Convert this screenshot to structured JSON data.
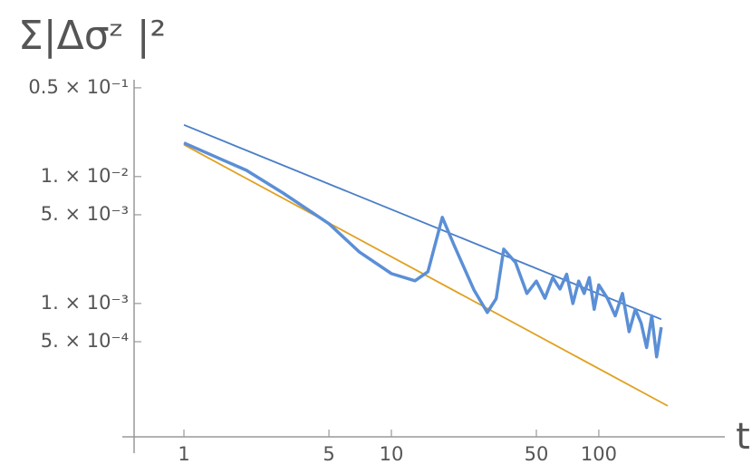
{
  "chart_data": {
    "type": "line",
    "title": "Σ|Δσᶻ |²",
    "x_label": "t",
    "log_x": true,
    "log_y": true,
    "xlim": [
      0.575,
      405
    ],
    "ylim": [
      8.9e-05,
      0.056
    ],
    "xticks": [
      1,
      5,
      10,
      50,
      100
    ],
    "yticks": [
      {
        "value": 0.05,
        "label": "0.5 × 10⁻¹"
      },
      {
        "value": 0.01,
        "label": "1. × 10⁻²"
      },
      {
        "value": 0.005,
        "label": "5. × 10⁻³"
      },
      {
        "value": 0.001,
        "label": "1. × 10⁻³"
      },
      {
        "value": 0.0005,
        "label": "5. × 10⁻⁴"
      }
    ],
    "series": [
      {
        "color": "#5b8fd6",
        "x": [
          1,
          2,
          3,
          5,
          7,
          10,
          13,
          15,
          17.6,
          20,
          25,
          29,
          32,
          34.8,
          39.7,
          45,
          50,
          55,
          60,
          65,
          70,
          75,
          80,
          85,
          90,
          95,
          100,
          110,
          120,
          130,
          140,
          150,
          160,
          170,
          180,
          190,
          200
        ],
        "values": [
          0.0184,
          0.0112,
          0.00743,
          0.00425,
          0.00255,
          0.00172,
          0.00151,
          0.00178,
          0.00477,
          0.00291,
          0.00128,
          0.00085,
          0.00109,
          0.00268,
          0.0021,
          0.0012,
          0.0015,
          0.0011,
          0.0016,
          0.0013,
          0.0017,
          0.001,
          0.0015,
          0.0012,
          0.0016,
          0.0009,
          0.0014,
          0.0011,
          0.0008,
          0.0012,
          0.0006,
          0.0009,
          0.0007,
          0.00045,
          0.0008,
          0.00038,
          0.00065
        ]
      },
      {
        "color": "#4a7ec8",
        "x": [
          1,
          200
        ],
        "values": [
          0.0255,
          0.00075
        ]
      },
      {
        "color": "#e0a020",
        "x": [
          1,
          215
        ],
        "values": [
          0.0178,
          0.000156
        ]
      }
    ]
  }
}
